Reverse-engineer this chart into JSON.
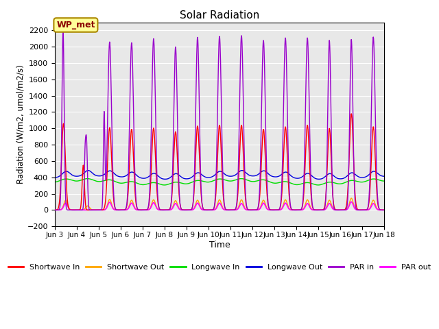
{
  "title": "Solar Radiation",
  "xlabel": "Time",
  "ylabel": "Radiation (W/m2, umol/m2/s)",
  "ylim": [
    -200,
    2300
  ],
  "yticks": [
    -200,
    0,
    200,
    400,
    600,
    800,
    1000,
    1200,
    1400,
    1600,
    1800,
    2000,
    2200
  ],
  "xtick_labels": [
    "Jun 3",
    "Jun 4",
    "Jun 5",
    "Jun 6",
    "Jun 7",
    "Jun 8",
    "Jun 9",
    "Jun 10",
    "Jun 11",
    "Jun 12",
    "Jun 13",
    "Jun 14",
    "Jun 15",
    "Jun 16",
    "Jun 17",
    "Jun 18"
  ],
  "series": {
    "Shortwave In": {
      "color": "#ff0000",
      "lw": 1.0
    },
    "Shortwave Out": {
      "color": "#ffa500",
      "lw": 1.0
    },
    "Longwave In": {
      "color": "#00dd00",
      "lw": 1.0
    },
    "Longwave Out": {
      "color": "#0000dd",
      "lw": 1.0
    },
    "PAR in": {
      "color": "#9900cc",
      "lw": 1.0
    },
    "PAR out": {
      "color": "#ff00ff",
      "lw": 1.2
    }
  },
  "annotation_text": "WP_met",
  "annotation_bg": "#ffff99",
  "annotation_border": "#aa8800",
  "bg_color": "#e8e8e8",
  "figsize": [
    6.4,
    4.8
  ],
  "dpi": 100
}
